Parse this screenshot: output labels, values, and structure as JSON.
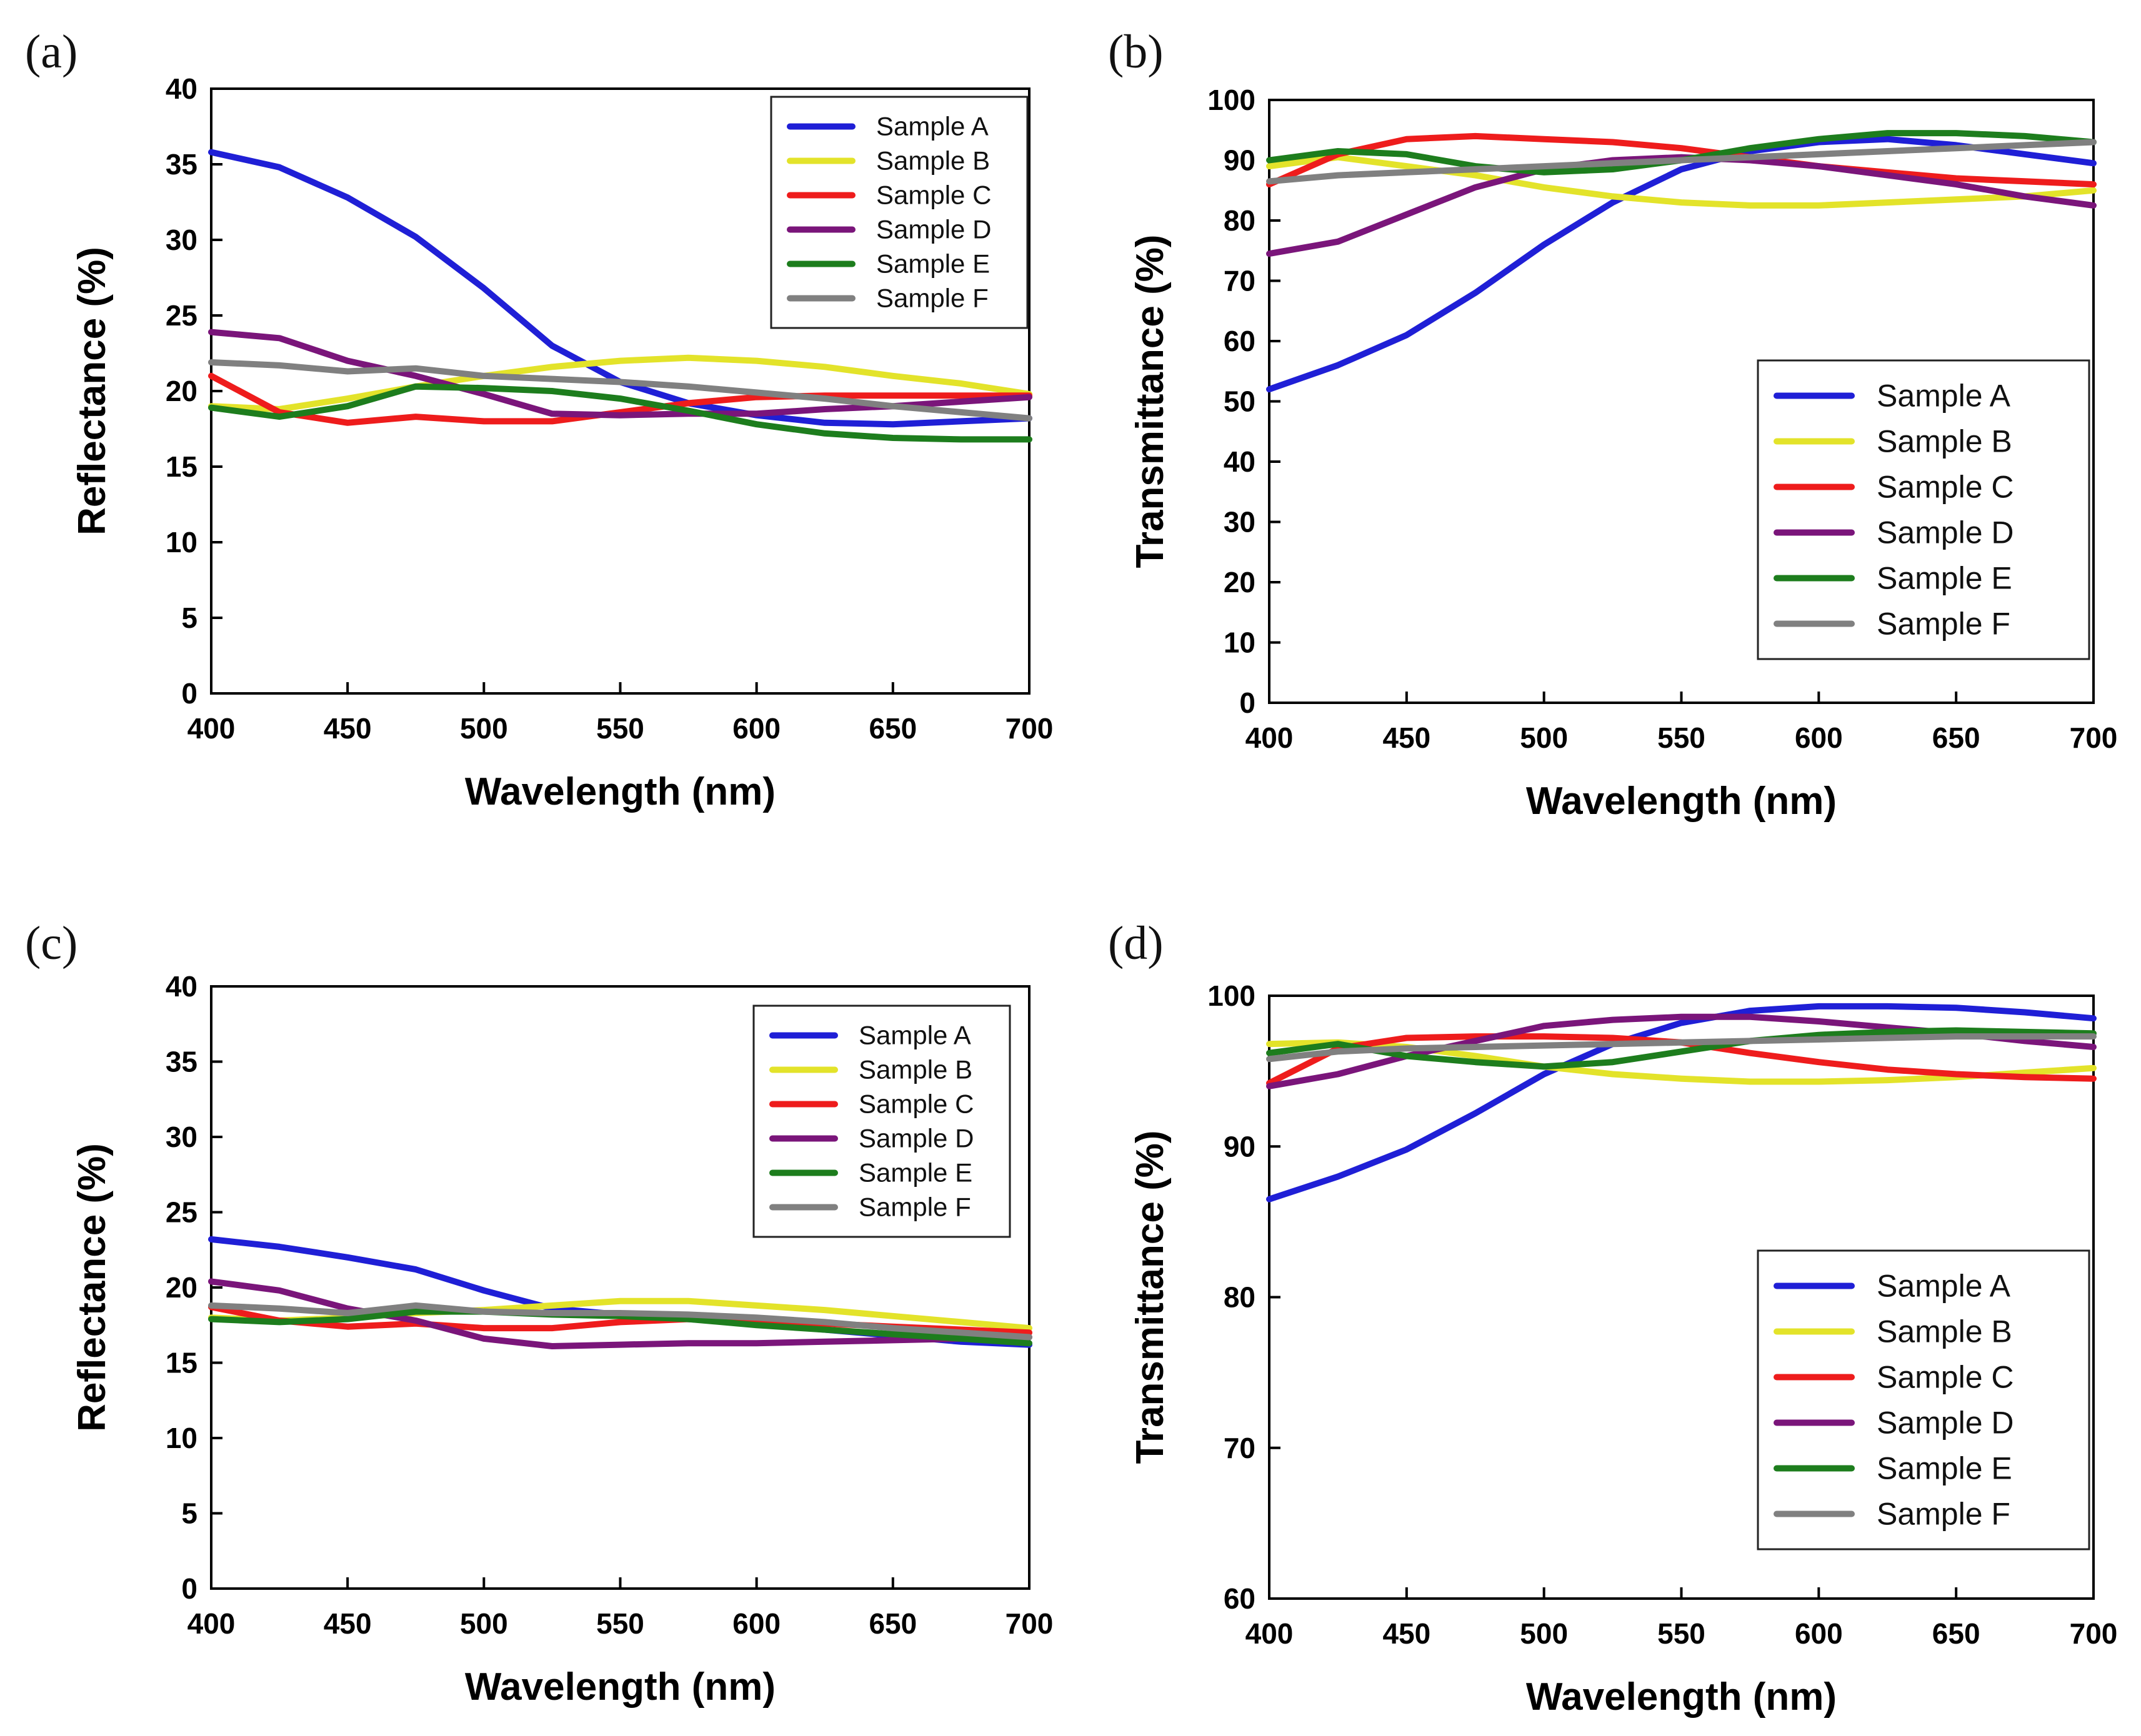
{
  "figure": {
    "panel_labels": [
      "(a)",
      "(b)",
      "(c)",
      "(d)"
    ]
  },
  "series_meta": [
    {
      "name": "Sample A",
      "color": "#1f1fd6"
    },
    {
      "name": "Sample B",
      "color": "#e3e32a"
    },
    {
      "name": "Sample C",
      "color": "#ee1c1c"
    },
    {
      "name": "Sample D",
      "color": "#7a157a"
    },
    {
      "name": "Sample E",
      "color": "#1d7d1d"
    },
    {
      "name": "Sample F",
      "color": "#808080"
    }
  ],
  "chart_data": [
    {
      "type": "line",
      "panel": "(a)",
      "xlabel": "Wavelength (nm)",
      "ylabel": "Reflectance (%)",
      "xlim": [
        400,
        700
      ],
      "ylim": [
        0,
        40
      ],
      "xticks": [
        400,
        450,
        500,
        550,
        600,
        650,
        700
      ],
      "yticks": [
        0,
        5,
        10,
        15,
        20,
        25,
        30,
        35,
        40
      ],
      "legend": "top-right",
      "x": [
        400,
        425,
        450,
        475,
        500,
        525,
        550,
        575,
        600,
        625,
        650,
        675,
        700
      ],
      "series": [
        {
          "name": "Sample A",
          "values": [
            35.8,
            34.8,
            32.8,
            30.2,
            26.8,
            23.0,
            20.6,
            19.2,
            18.4,
            17.9,
            17.8,
            18.0,
            18.2
          ]
        },
        {
          "name": "Sample B",
          "values": [
            19.0,
            18.8,
            19.5,
            20.3,
            21.0,
            21.6,
            22.0,
            22.2,
            22.0,
            21.6,
            21.0,
            20.5,
            19.8
          ]
        },
        {
          "name": "Sample C",
          "values": [
            21.0,
            18.6,
            17.9,
            18.3,
            18.0,
            18.0,
            18.6,
            19.2,
            19.6,
            19.7,
            19.7,
            19.7,
            19.7
          ]
        },
        {
          "name": "Sample D",
          "values": [
            23.9,
            23.5,
            22.0,
            21.0,
            19.8,
            18.5,
            18.4,
            18.5,
            18.5,
            18.8,
            19.0,
            19.3,
            19.6
          ]
        },
        {
          "name": "Sample E",
          "values": [
            18.9,
            18.3,
            19.0,
            20.3,
            20.2,
            20.0,
            19.5,
            18.7,
            17.8,
            17.2,
            16.9,
            16.8,
            16.8
          ]
        },
        {
          "name": "Sample F",
          "values": [
            21.9,
            21.7,
            21.3,
            21.5,
            21.0,
            20.8,
            20.6,
            20.3,
            19.9,
            19.5,
            19.0,
            18.6,
            18.2
          ]
        }
      ]
    },
    {
      "type": "line",
      "panel": "(b)",
      "xlabel": "Wavelength (nm)",
      "ylabel": "Transmittance (%)",
      "xlim": [
        400,
        700
      ],
      "ylim": [
        0,
        100
      ],
      "xticks": [
        400,
        450,
        500,
        550,
        600,
        650,
        700
      ],
      "yticks": [
        0,
        10,
        20,
        30,
        40,
        50,
        60,
        70,
        80,
        90,
        100
      ],
      "legend": "bottom-right",
      "x": [
        400,
        425,
        450,
        475,
        500,
        525,
        550,
        575,
        600,
        625,
        650,
        675,
        700
      ],
      "series": [
        {
          "name": "Sample A",
          "values": [
            52,
            56,
            61,
            68,
            76,
            83,
            88.5,
            91.5,
            93,
            93.5,
            92.5,
            91,
            89.5
          ]
        },
        {
          "name": "Sample B",
          "values": [
            89,
            90.5,
            89,
            87.5,
            85.5,
            84,
            83,
            82.5,
            82.5,
            83,
            83.5,
            84,
            85
          ]
        },
        {
          "name": "Sample C",
          "values": [
            86,
            91,
            93.5,
            94,
            93.5,
            93,
            92,
            90.5,
            89,
            88,
            87,
            86.5,
            86
          ]
        },
        {
          "name": "Sample D",
          "values": [
            74.5,
            76.5,
            81,
            85.5,
            88.5,
            90,
            90.5,
            90,
            89,
            87.5,
            86,
            84,
            82.5
          ]
        },
        {
          "name": "Sample E",
          "values": [
            90,
            91.5,
            91,
            89,
            88,
            88.5,
            90,
            92,
            93.5,
            94.5,
            94.5,
            94,
            93
          ]
        },
        {
          "name": "Sample F",
          "values": [
            86.5,
            87.5,
            88,
            88.5,
            89,
            89.5,
            90,
            90.5,
            91,
            91.5,
            92,
            92.5,
            93
          ]
        }
      ]
    },
    {
      "type": "line",
      "panel": "(c)",
      "xlabel": "Wavelength (nm)",
      "ylabel": "Reflectance (%)",
      "xlim": [
        400,
        700
      ],
      "ylim": [
        0,
        40
      ],
      "xticks": [
        400,
        450,
        500,
        550,
        600,
        650,
        700
      ],
      "yticks": [
        0,
        5,
        10,
        15,
        20,
        25,
        30,
        35,
        40
      ],
      "legend": "top-right",
      "x": [
        400,
        425,
        450,
        475,
        500,
        525,
        550,
        575,
        600,
        625,
        650,
        675,
        700
      ],
      "series": [
        {
          "name": "Sample A",
          "values": [
            23.2,
            22.7,
            22.0,
            21.2,
            19.8,
            18.6,
            18.2,
            17.9,
            17.6,
            17.2,
            16.8,
            16.4,
            16.2
          ]
        },
        {
          "name": "Sample B",
          "values": [
            18.0,
            17.8,
            18.0,
            18.3,
            18.5,
            18.8,
            19.1,
            19.1,
            18.8,
            18.5,
            18.1,
            17.7,
            17.3
          ]
        },
        {
          "name": "Sample C",
          "values": [
            18.7,
            17.8,
            17.4,
            17.6,
            17.3,
            17.3,
            17.7,
            17.9,
            17.8,
            17.6,
            17.4,
            17.2,
            17.0
          ]
        },
        {
          "name": "Sample D",
          "values": [
            20.4,
            19.8,
            18.6,
            17.8,
            16.6,
            16.1,
            16.2,
            16.3,
            16.3,
            16.4,
            16.5,
            16.6,
            16.7
          ]
        },
        {
          "name": "Sample E",
          "values": [
            17.9,
            17.7,
            17.9,
            18.4,
            18.4,
            18.2,
            18.1,
            17.9,
            17.5,
            17.2,
            16.9,
            16.6,
            16.3
          ]
        },
        {
          "name": "Sample F",
          "values": [
            18.8,
            18.6,
            18.3,
            18.8,
            18.4,
            18.3,
            18.3,
            18.2,
            18.0,
            17.7,
            17.3,
            17.0,
            16.7
          ]
        }
      ]
    },
    {
      "type": "line",
      "panel": "(d)",
      "xlabel": "Wavelength (nm)",
      "ylabel": "Transmittance (%)",
      "xlim": [
        400,
        700
      ],
      "ylim": [
        60,
        100
      ],
      "xticks": [
        400,
        450,
        500,
        550,
        600,
        650,
        700
      ],
      "yticks": [
        60,
        70,
        80,
        90,
        100
      ],
      "legend": "bottom-right",
      "x": [
        400,
        425,
        450,
        475,
        500,
        525,
        550,
        575,
        600,
        625,
        650,
        675,
        700
      ],
      "series": [
        {
          "name": "Sample A",
          "values": [
            86.5,
            88.0,
            89.8,
            92.2,
            94.8,
            96.8,
            98.2,
            99.0,
            99.3,
            99.3,
            99.2,
            98.9,
            98.5
          ]
        },
        {
          "name": "Sample B",
          "values": [
            96.8,
            96.9,
            96.6,
            96.0,
            95.3,
            94.8,
            94.5,
            94.3,
            94.3,
            94.4,
            94.6,
            94.9,
            95.2
          ]
        },
        {
          "name": "Sample C",
          "values": [
            94.2,
            96.5,
            97.2,
            97.3,
            97.3,
            97.2,
            96.9,
            96.2,
            95.6,
            95.1,
            94.8,
            94.6,
            94.5
          ]
        },
        {
          "name": "Sample D",
          "values": [
            94.0,
            94.8,
            96.0,
            97.0,
            98.0,
            98.4,
            98.6,
            98.6,
            98.3,
            97.9,
            97.5,
            97.0,
            96.6
          ]
        },
        {
          "name": "Sample E",
          "values": [
            96.2,
            96.8,
            96.0,
            95.6,
            95.3,
            95.6,
            96.3,
            97.0,
            97.4,
            97.6,
            97.7,
            97.6,
            97.5
          ]
        },
        {
          "name": "Sample F",
          "values": [
            95.8,
            96.3,
            96.5,
            96.6,
            96.7,
            96.8,
            96.9,
            97.0,
            97.1,
            97.2,
            97.3,
            97.3,
            97.3
          ]
        }
      ]
    }
  ]
}
